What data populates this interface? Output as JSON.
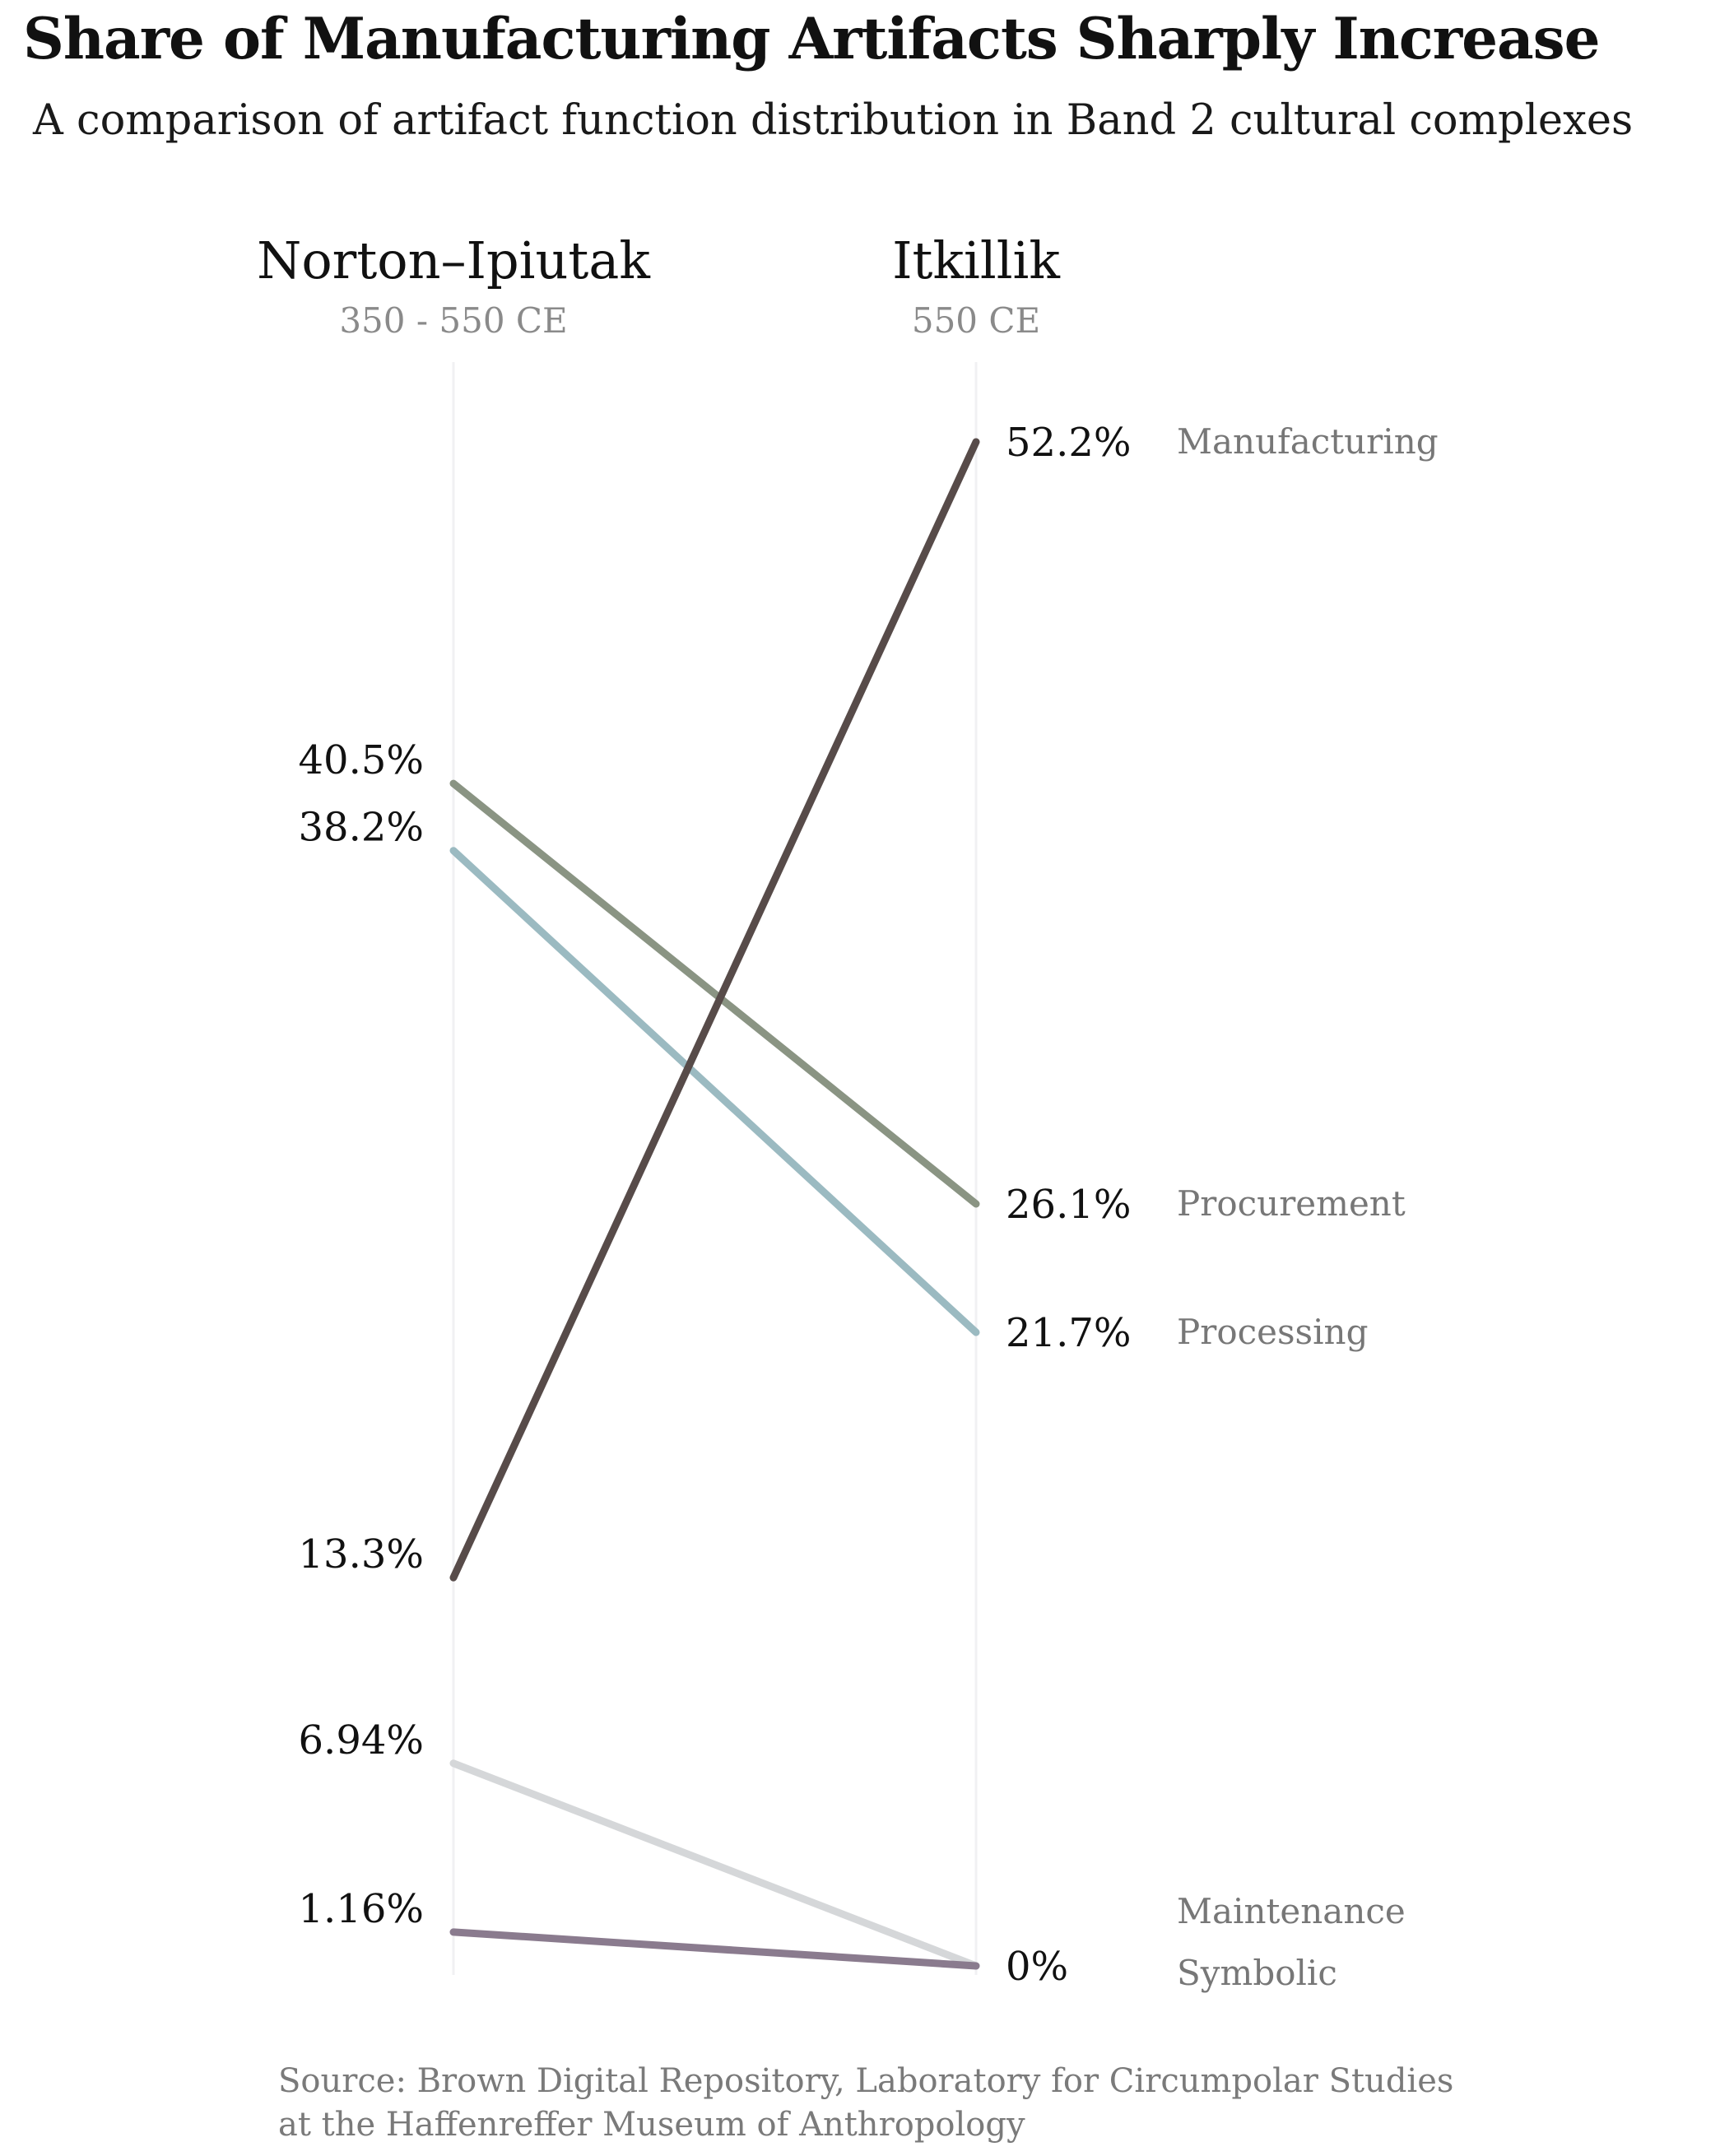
{
  "title": "Share of Manufacturing Artifacts Sharply Increase",
  "subtitle": "A comparison of artifact function distribution in Band 2 cultural complexes",
  "source": {
    "line1": "Source: Brown Digital Repository, Laboratory for Circumpolar Studies",
    "line2": "at the Haffenreffer Museum of Anthropology"
  },
  "chart_data": {
    "type": "line",
    "subtype": "slope",
    "columns": [
      {
        "name": "Norton–Ipiutak",
        "period": "350 - 550 CE"
      },
      {
        "name": "Itkillik",
        "period": "550 CE"
      }
    ],
    "ylim": [
      0,
      52.2
    ],
    "grid": false,
    "series": [
      {
        "name": "Manufacturing",
        "values": [
          13.3,
          52.2
        ],
        "labels": [
          "13.3%",
          "52.2%"
        ],
        "color": "#574b49"
      },
      {
        "name": "Procurement",
        "values": [
          40.5,
          26.1
        ],
        "labels": [
          "40.5%",
          "26.1%"
        ],
        "color": "#8a9483"
      },
      {
        "name": "Processing",
        "values": [
          38.2,
          21.7
        ],
        "labels": [
          "38.2%",
          "21.7%"
        ],
        "color": "#9bbac1"
      },
      {
        "name": "Maintenance",
        "values": [
          6.94,
          0
        ],
        "labels": [
          "6.94%",
          "0%"
        ],
        "color": "#d5d7d9"
      },
      {
        "name": "Symbolic",
        "values": [
          1.16,
          0
        ],
        "labels": [
          "1.16%",
          "0%"
        ],
        "color": "#8a7b8e"
      }
    ],
    "right_end_order": [
      "Manufacturing",
      "Procurement",
      "Processing",
      "Maintenance",
      "Symbolic"
    ]
  }
}
